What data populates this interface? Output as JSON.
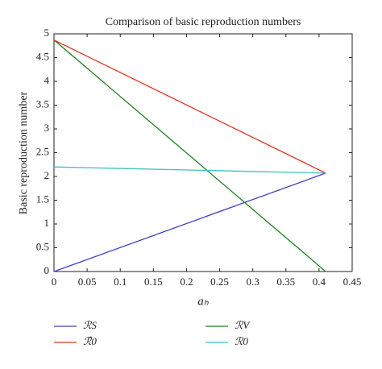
{
  "chart_data": {
    "type": "line",
    "title": "Comparison of basic reproduction numbers",
    "x_label": "aₕ",
    "y_label": "Basic reproduction number",
    "x": [
      0,
      0.41
    ],
    "series": [
      {
        "name": "ℛS",
        "color": "#4040c0",
        "values": [
          0,
          2.07
        ]
      },
      {
        "name": "ℛV",
        "color": "#208020",
        "values": [
          4.87,
          0
        ]
      },
      {
        "name": "ℛ̂0",
        "color": "#e03020",
        "values": [
          4.87,
          2.07
        ]
      },
      {
        "name": "ℛ0",
        "color": "#40c0c0",
        "values": [
          2.2,
          2.07
        ]
      }
    ],
    "xlim": [
      0,
      0.45
    ],
    "xticks": [
      0,
      0.05,
      0.1,
      0.15,
      0.2,
      0.25,
      0.3,
      0.35,
      0.4,
      0.45
    ],
    "ylim": [
      0,
      5
    ],
    "yticks": [
      0,
      0.5,
      1,
      1.5,
      2,
      2.5,
      3,
      3.5,
      4,
      4.5,
      5
    ]
  }
}
